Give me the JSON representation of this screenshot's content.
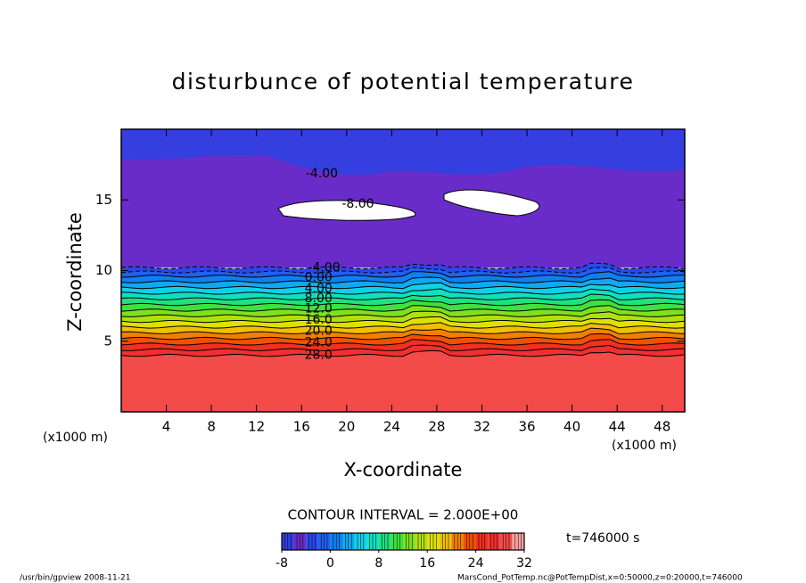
{
  "chart_data": {
    "type": "contour",
    "title": "disturbunce of potential temperature",
    "x_label": "X-coordinate",
    "y_label": "Z-coordinate",
    "x_unit": "(x1000 m)",
    "xlim": [
      0,
      50
    ],
    "xticks": [
      4,
      8,
      12,
      16,
      20,
      24,
      28,
      32,
      36,
      40,
      44,
      48
    ],
    "ylim": [
      0,
      20
    ],
    "yticks": [
      5,
      10,
      15
    ],
    "contours": {
      "levels": [
        28,
        26,
        24,
        22,
        20,
        18,
        16,
        14,
        12,
        10,
        8,
        6,
        4,
        2,
        0,
        -2,
        -4
      ],
      "z": [
        4.0,
        4.4,
        4.8,
        5.2,
        5.6,
        6.0,
        6.4,
        6.8,
        7.2,
        7.6,
        8.0,
        8.4,
        8.8,
        9.2,
        9.6,
        9.9,
        10.2
      ]
    },
    "contour_labels": [
      {
        "value": -4,
        "label": "-4.00",
        "x": 17.8,
        "z": 16.85
      },
      {
        "value": -8,
        "label": "-8.00",
        "x": 21,
        "z": 14.7
      },
      {
        "value": -4,
        "label": "-4.00",
        "x": 18,
        "z": 10.2
      },
      {
        "value": 0,
        "label": "0.00",
        "x": 17.5,
        "z": 9.5
      },
      {
        "value": 4,
        "label": "4.00",
        "x": 17.5,
        "z": 8.7
      },
      {
        "value": 8,
        "label": "8.00",
        "x": 17.5,
        "z": 8.0
      },
      {
        "value": 12,
        "label": "12.0",
        "x": 17.5,
        "z": 7.3
      },
      {
        "value": 16,
        "label": "16.0",
        "x": 17.5,
        "z": 6.5
      },
      {
        "value": 20,
        "label": "20.0",
        "x": 17.5,
        "z": 5.7
      },
      {
        "value": 24,
        "label": "24.0",
        "x": 17.5,
        "z": 4.9
      },
      {
        "value": 28,
        "label": "28.0",
        "x": 17.5,
        "z": 4.0
      }
    ],
    "contour_interval_text": "CONTOUR INTERVAL = 2.000E+00",
    "time_text": "t=746000 s",
    "colorbar": {
      "lim": [
        -8,
        32
      ],
      "ticks": [
        -8,
        0,
        8,
        16,
        24,
        32
      ]
    },
    "colors": [
      "#3040e0",
      "#6a2cc8",
      "#2a48e8",
      "#2060f0",
      "#1080f0",
      "#10a8f0",
      "#10d0e8",
      "#10e0c0",
      "#20e080",
      "#40e040",
      "#80e020",
      "#b0e010",
      "#e0e000",
      "#f0c000",
      "#f08000",
      "#f05000",
      "#f03020",
      "#f03030",
      "#f34a4a",
      "#f8a0a0"
    ],
    "footer_left": "/usr/bin/gpview   2008-11-21",
    "footer_right": "MarsCond_PotTemp.nc@PotTempDist,x=0:50000,z=0:20000,t=746000"
  }
}
